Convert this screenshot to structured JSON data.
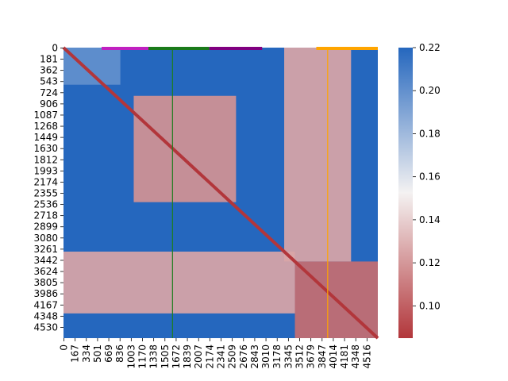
{
  "chart_data": {
    "type": "heatmap",
    "title": "",
    "xlabel": "",
    "ylabel": "",
    "x_tick_labels": [
      "0",
      "167",
      "334",
      "501",
      "669",
      "836",
      "1003",
      "1170",
      "1338",
      "1505",
      "1672",
      "1839",
      "2007",
      "2174",
      "2341",
      "2509",
      "2676",
      "2843",
      "3010",
      "3178",
      "3345",
      "3512",
      "3679",
      "3847",
      "4014",
      "4181",
      "4348",
      "4516"
    ],
    "y_tick_labels": [
      "0",
      "181",
      "362",
      "543",
      "724",
      "906",
      "1087",
      "1268",
      "1449",
      "1630",
      "1812",
      "1993",
      "2174",
      "2355",
      "2536",
      "2718",
      "2899",
      "3080",
      "3261",
      "3442",
      "3624",
      "3805",
      "3986",
      "4167",
      "4348",
      "4530"
    ],
    "axis_extent": {
      "x": [
        0,
        4700
      ],
      "y": [
        0,
        4700
      ]
    },
    "colorbar": {
      "ticks": [
        "0.10",
        "0.12",
        "0.14",
        "0.16",
        "0.18",
        "0.20",
        "0.22"
      ],
      "range": [
        0.085,
        0.22
      ],
      "colormap": [
        "#b2363b",
        "#f4f2f2",
        "#2567be"
      ]
    },
    "vertical_markers": [
      {
        "x": 1630,
        "color": "#1e7e1e"
      },
      {
        "x": 3950,
        "color": "#ffa500"
      }
    ],
    "top_segments": [
      {
        "start": 570,
        "end": 1270,
        "color": "#c020c0"
      },
      {
        "start": 1270,
        "end": 2180,
        "color": "#1a7a1a"
      },
      {
        "start": 2180,
        "end": 2970,
        "color": "#800080"
      },
      {
        "start": 3780,
        "end": 4700,
        "color": "#ffa500"
      }
    ],
    "blocks": [
      {
        "x": [
          1050,
          2580
        ],
        "y": [
          780,
          2500
        ],
        "value": 0.118
      },
      {
        "x": [
          3460,
          4700
        ],
        "y": [
          3460,
          4700
        ],
        "value": 0.105
      },
      {
        "x": [
          0,
          3460
        ],
        "y": [
          3300,
          4300
        ],
        "value": 0.125
      },
      {
        "x": [
          3300,
          4300
        ],
        "y": [
          0,
          3460
        ],
        "value": 0.125
      },
      {
        "x": [
          0,
          850
        ],
        "y": [
          0,
          600
        ],
        "value": 0.2
      }
    ],
    "diagonal_value": 0.085,
    "background_value": 0.22
  }
}
